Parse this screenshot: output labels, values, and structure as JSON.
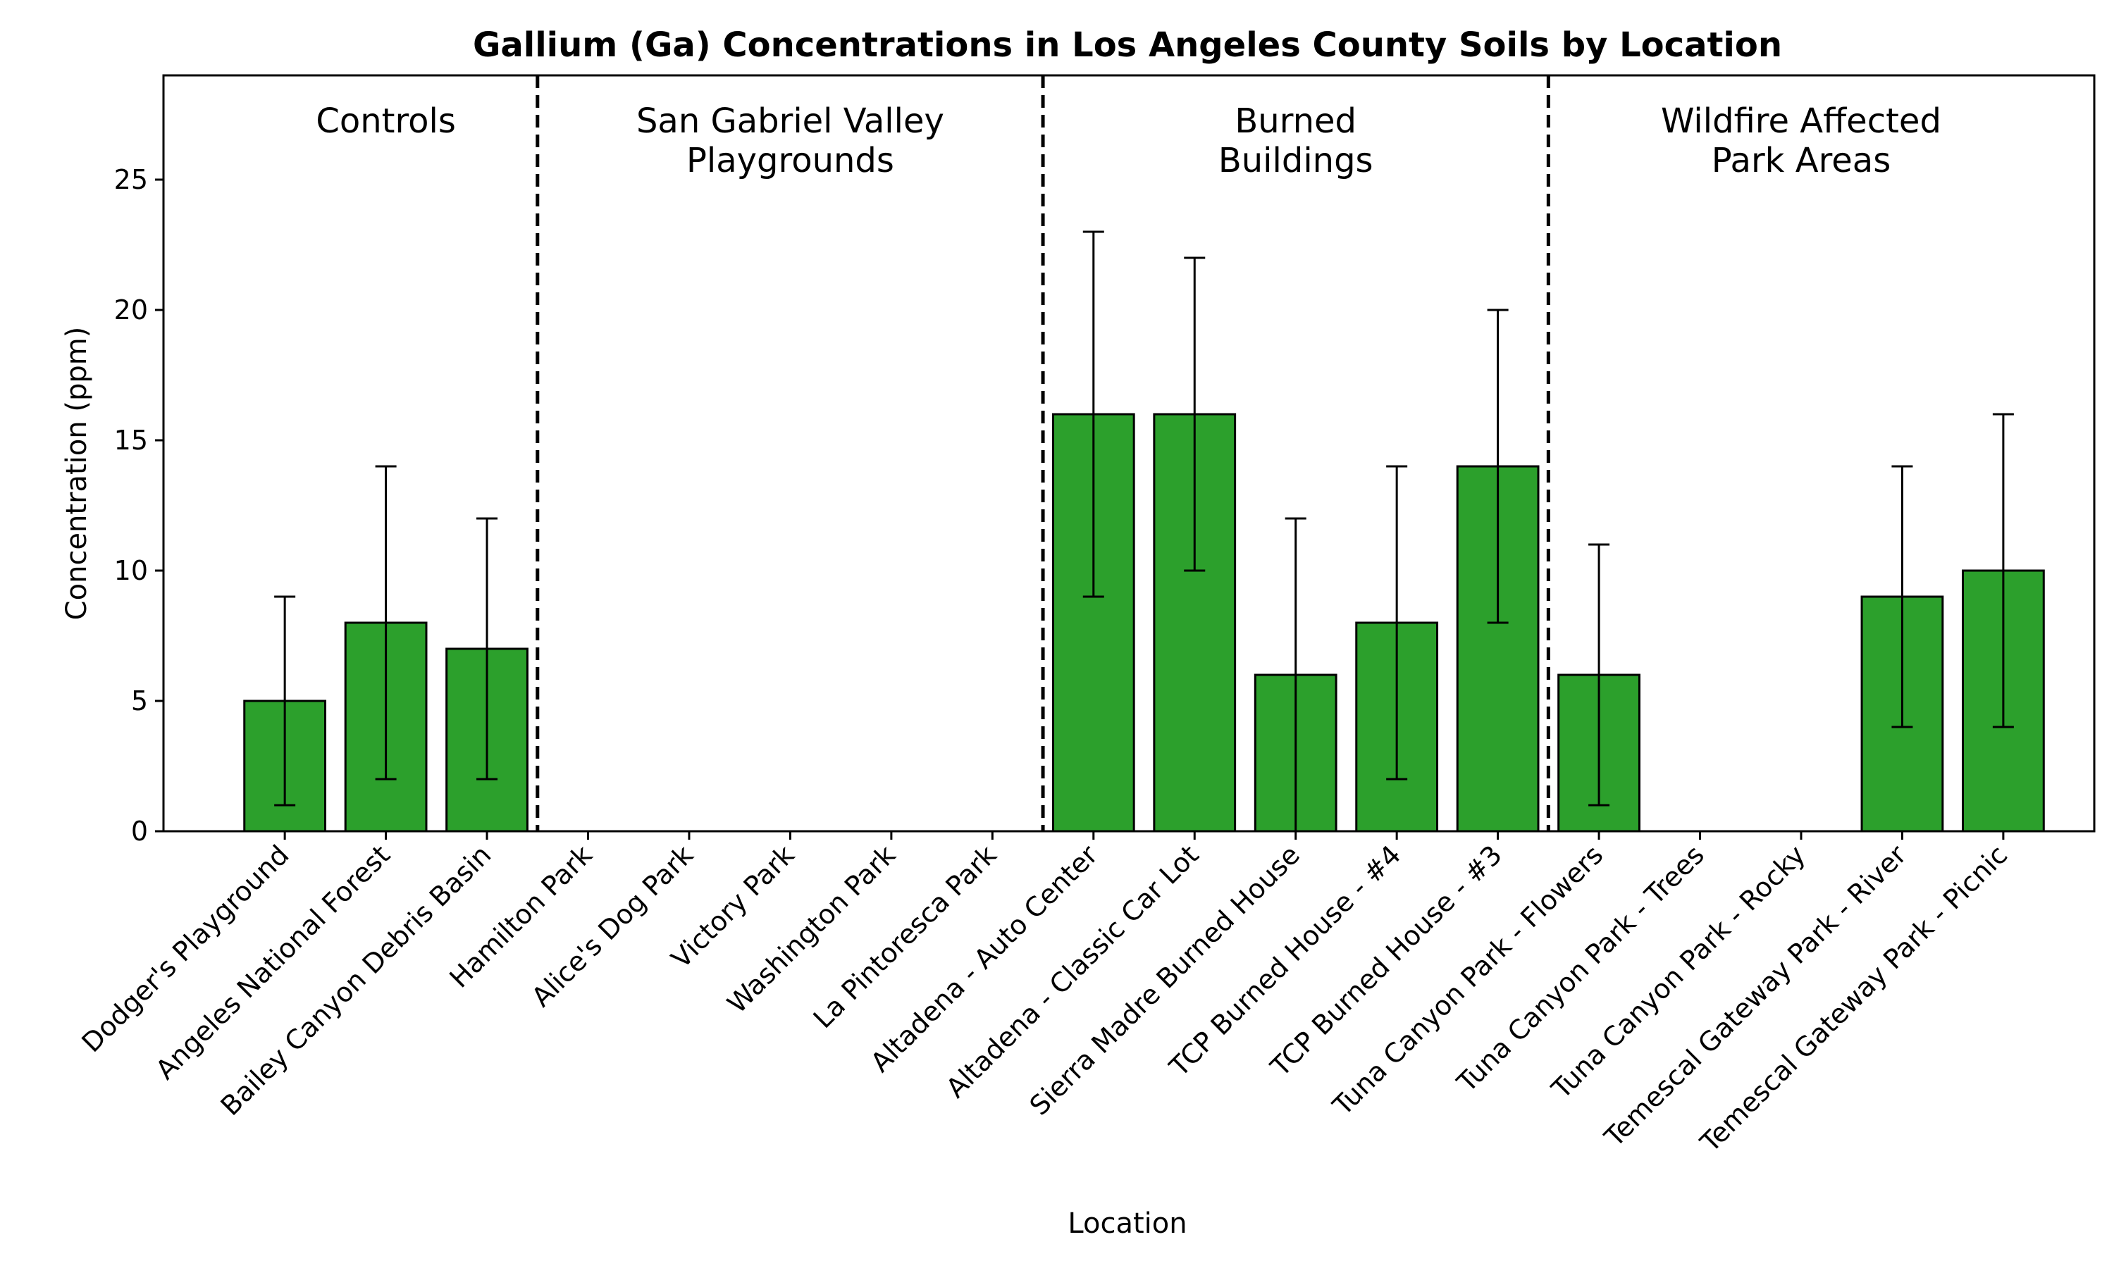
{
  "chart_data": {
    "type": "bar",
    "title": "Gallium (Ga) Concentrations in Los Angeles County Soils by Location",
    "xlabel": "Location",
    "ylabel": "Concentration (ppm)",
    "ylim": [
      0,
      29
    ],
    "yticks": [
      0,
      5,
      10,
      15,
      20,
      25
    ],
    "categories": [
      "Dodger's Playground",
      "Angeles National Forest",
      "Bailey Canyon Debris Basin",
      "Hamilton Park",
      "Alice's Dog Park",
      "Victory Park",
      "Washington Park",
      "La Pintoresca Park",
      "Altadena - Auto Center",
      "Altadena - Classic Car Lot",
      "Sierra Madre Burned House",
      "TCP Burned House - #4",
      "TCP Burned House - #3",
      "Tuna Canyon Park - Flowers",
      "Tuna Canyon Park - Trees",
      "Tuna Canyon Park - Rocky",
      "Temescal Gateway Park - River",
      "Temescal Gateway Park - Picnic"
    ],
    "values": [
      5,
      8,
      7,
      0,
      0,
      0,
      0,
      0,
      16,
      16,
      6,
      8,
      14,
      6,
      0,
      0,
      9,
      10
    ],
    "error_low": [
      1,
      2,
      2,
      null,
      null,
      null,
      null,
      null,
      9,
      10,
      0,
      2,
      8,
      1,
      null,
      null,
      4,
      4
    ],
    "error_high": [
      9,
      14,
      12,
      null,
      null,
      null,
      null,
      null,
      23,
      22,
      12,
      14,
      20,
      11,
      null,
      null,
      14,
      16
    ],
    "bar_color": "#2ca02c",
    "groups": [
      {
        "label_lines": [
          "Controls"
        ],
        "start": 0,
        "end": 2
      },
      {
        "label_lines": [
          "San Gabriel Valley",
          "Playgrounds"
        ],
        "start": 3,
        "end": 7
      },
      {
        "label_lines": [
          "Burned",
          "Buildings"
        ],
        "start": 8,
        "end": 12
      },
      {
        "label_lines": [
          "Wildfire Affected",
          "Park Areas"
        ],
        "start": 13,
        "end": 17
      }
    ],
    "separators_after_index": [
      2,
      7,
      12
    ],
    "grid": false,
    "legend": "none"
  }
}
